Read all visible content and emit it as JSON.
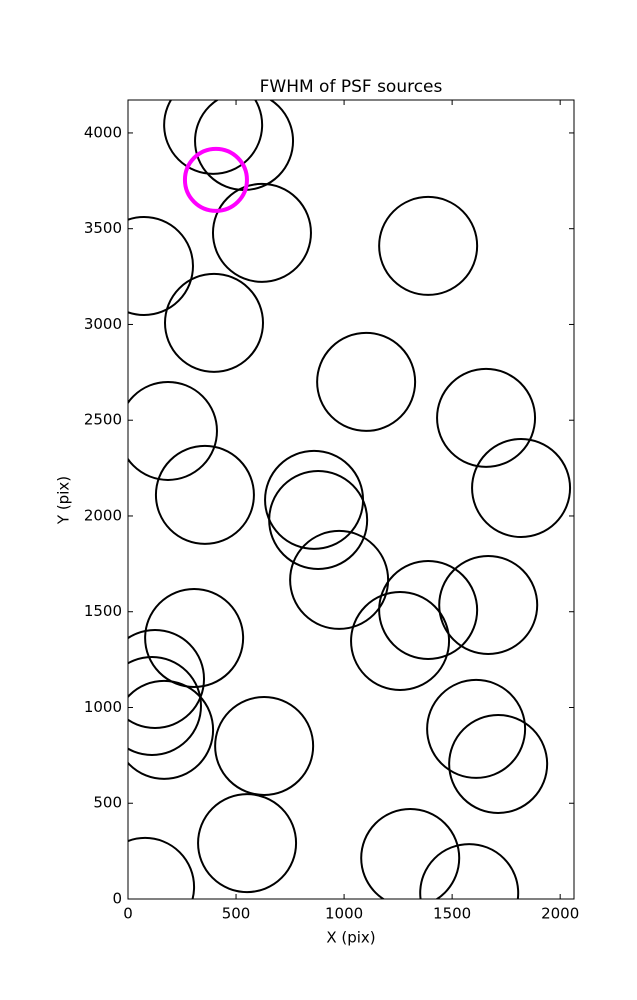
{
  "chart_data": {
    "type": "scatter",
    "title": "FWHM of PSF sources",
    "x_label": "X (pix)",
    "y_label": "Y (pix)",
    "xlim": [
      0,
      2064
    ],
    "ylim": [
      0,
      4172
    ],
    "xticks": [
      0,
      500,
      1000,
      1500,
      2000
    ],
    "yticks": [
      0,
      500,
      1000,
      1500,
      2000,
      2500,
      3000,
      3500,
      4000
    ],
    "grid": false,
    "series": [
      {
        "color": "#000000",
        "x": [
          394,
          537,
          620,
          1389,
          74,
          398,
          1102,
          185,
          1657,
          356,
          861,
          880,
          1819,
          977,
          1389,
          1667,
          306,
          1259,
          125,
          111,
          167,
          1611,
          1713,
          630,
          551,
          79,
          1306,
          1579
        ],
        "values": [
          4042,
          3958,
          3478,
          3410,
          3305,
          3008,
          2700,
          2444,
          2512,
          2110,
          2084,
          1979,
          2146,
          1666,
          1509,
          1535,
          1363,
          1347,
          1149,
          1008,
          883,
          888,
          705,
          799,
          292,
          63,
          214,
          31
        ]
      },
      {
        "color": "#ff00ff",
        "x": [
          407
        ],
        "values": [
          3755
        ]
      }
    ]
  }
}
